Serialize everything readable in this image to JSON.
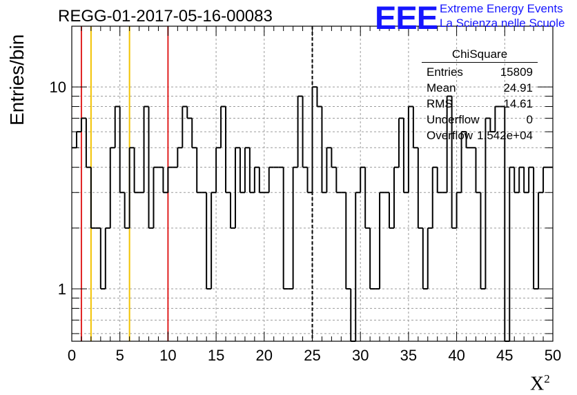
{
  "header": {
    "run_title": "REGG-01-2017-05-16-00083",
    "logo_text": "EEE",
    "logo_line1": "Extreme Energy Events",
    "logo_line2": "La Scienza nelle Scuole",
    "brand_color": "#1616ff"
  },
  "stats_box": {
    "title": "ChiSquare",
    "rows": [
      {
        "key": "Entries",
        "value": "15809"
      },
      {
        "key": "Mean",
        "value": "24.91"
      },
      {
        "key": "RMS",
        "value": "14.61"
      },
      {
        "key": "Underflow",
        "value": "0"
      },
      {
        "key": "Overflow",
        "value": "1.542e+04"
      }
    ]
  },
  "chart_data": {
    "type": "histogram",
    "title": "",
    "xlabel": "X",
    "xlabel_superscript": "2",
    "ylabel": "Entries/bin",
    "xlim": [
      0,
      50
    ],
    "ylim": [
      0.55,
      20
    ],
    "y_scale": "log",
    "grid": true,
    "bin_width": 0.5,
    "x_ticks": [
      0,
      5,
      10,
      15,
      20,
      25,
      30,
      35,
      40,
      45,
      50
    ],
    "y_ticks": [
      1,
      10
    ],
    "values": [
      5,
      6,
      7,
      4,
      2,
      2,
      1,
      2,
      5,
      8,
      3,
      2,
      5,
      3,
      3,
      8,
      2,
      4,
      4,
      3,
      4,
      4,
      5,
      8,
      7,
      5,
      3,
      3,
      1,
      3,
      5,
      8,
      3,
      2,
      5,
      3,
      5,
      3,
      4,
      3,
      3,
      4,
      4,
      4,
      1,
      1,
      4,
      9,
      4,
      3,
      10,
      8,
      3,
      5,
      4,
      3,
      3,
      1,
      0,
      3,
      4,
      2,
      1,
      1,
      3,
      3,
      2,
      4,
      7,
      3,
      8,
      5,
      2,
      1,
      2,
      4,
      3,
      3,
      9,
      2,
      3,
      6,
      5,
      5,
      3,
      1,
      7,
      6,
      8,
      8,
      0,
      4,
      3,
      4,
      3,
      4,
      1,
      3,
      4,
      4
    ],
    "markers": [
      {
        "x": 1,
        "color": "#e02020",
        "style": "solid"
      },
      {
        "x": 2,
        "color": "#f2c200",
        "style": "solid"
      },
      {
        "x": 6,
        "color": "#f2c200",
        "style": "solid"
      },
      {
        "x": 10,
        "color": "#e02020",
        "style": "solid"
      },
      {
        "x": 25,
        "color": "#000000",
        "style": "dashed"
      }
    ]
  }
}
